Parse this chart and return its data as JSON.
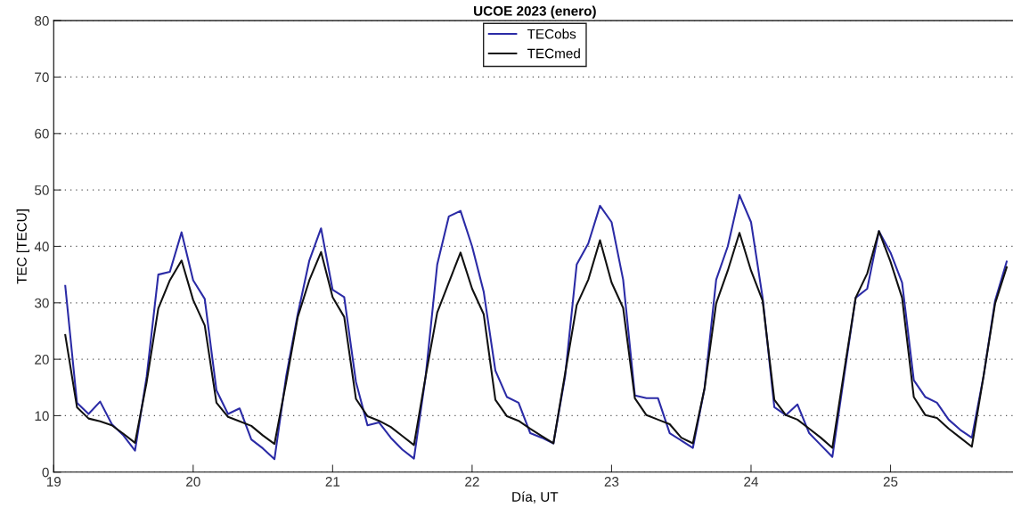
{
  "chart_data": {
    "type": "line",
    "title": "UCOE 2023 (enero)",
    "xlabel": "Día, UT",
    "ylabel": "TEC [TECU]",
    "x": [
      19.083,
      19.167,
      19.25,
      19.333,
      19.417,
      19.5,
      19.583,
      19.667,
      19.75,
      19.833,
      19.917,
      20.0,
      20.083,
      20.167,
      20.25,
      20.333,
      20.417,
      20.5,
      20.583,
      20.667,
      20.75,
      20.833,
      20.917,
      21.0,
      21.083,
      21.167,
      21.25,
      21.333,
      21.417,
      21.5,
      21.583,
      21.667,
      21.75,
      21.833,
      21.917,
      22.0,
      22.083,
      22.167,
      22.25,
      22.333,
      22.417,
      22.5,
      22.583,
      22.667,
      22.75,
      22.833,
      22.917,
      23.0,
      23.083,
      23.167,
      23.25,
      23.333,
      23.417,
      23.5,
      23.583,
      23.667,
      23.75,
      23.833,
      23.917,
      24.0,
      24.083,
      24.167,
      24.25,
      24.333,
      24.417,
      24.5,
      24.583,
      24.667,
      24.75,
      24.833,
      24.917,
      25.0,
      25.083,
      25.167,
      25.25,
      25.333,
      25.417,
      25.5,
      25.583,
      25.667,
      25.75,
      25.833
    ],
    "series": [
      {
        "name": "TECobs",
        "color": "#2b2ba6",
        "values": [
          33,
          12.3,
          10.3,
          12.5,
          8.5,
          6.5,
          3.8,
          17,
          35,
          35.5,
          42.5,
          34,
          30.7,
          14.5,
          10.3,
          11.3,
          5.8,
          4.2,
          2.3,
          17,
          28,
          37.5,
          43.2,
          32.3,
          31,
          16,
          8.3,
          8.8,
          6.1,
          4,
          2.4,
          17,
          36.8,
          45.3,
          46.3,
          40,
          32,
          18,
          13.3,
          12.3,
          6.9,
          6.1,
          5.1,
          17,
          36.8,
          40.5,
          47.2,
          44.3,
          34.1,
          13.6,
          13.1,
          13.1,
          6.9,
          5.6,
          4.3,
          14.9,
          34.1,
          40,
          49.1,
          44.3,
          30.9,
          11.5,
          10.1,
          12,
          6.9,
          4.8,
          2.7,
          17,
          30.9,
          32.5,
          42.7,
          38.9,
          33.6,
          16.3,
          13.3,
          12.3,
          9.3,
          7.5,
          6.1,
          17,
          30.4,
          37.3
        ]
      },
      {
        "name": "TECmed",
        "color": "#111111",
        "values": [
          24.3,
          11.5,
          9.5,
          9,
          8.3,
          6.8,
          5.2,
          16,
          29,
          34,
          37.5,
          30.5,
          26,
          12.3,
          9.8,
          9,
          8.2,
          6.5,
          5,
          16,
          27.5,
          34,
          39,
          31,
          27.5,
          13,
          9.9,
          9.1,
          8,
          6.4,
          4.8,
          17,
          28.3,
          33.6,
          38.9,
          32.5,
          28,
          12.8,
          9.9,
          9.1,
          7.7,
          6.4,
          5.1,
          17.5,
          29.6,
          34.1,
          41.1,
          33.6,
          29.1,
          13.1,
          10.1,
          9.3,
          8.5,
          6.1,
          5.1,
          14.9,
          29.9,
          35.7,
          42.4,
          35.7,
          30.4,
          12.8,
          10.1,
          9.3,
          7.7,
          6.1,
          4.3,
          17.8,
          30.9,
          35.2,
          42.7,
          37.3,
          30.9,
          13.3,
          10.1,
          9.6,
          7.7,
          6.1,
          4.5,
          17,
          29.9,
          36.3
        ]
      }
    ],
    "xlim": [
      19,
      25.9
    ],
    "xticks": [
      19,
      20,
      21,
      22,
      23,
      24,
      25
    ],
    "ylim": [
      0,
      80
    ],
    "yticks": [
      0,
      10,
      20,
      30,
      40,
      50,
      60,
      70,
      80
    ],
    "grid": "y",
    "legend": "top",
    "line_style": "solid",
    "marker": "none"
  }
}
